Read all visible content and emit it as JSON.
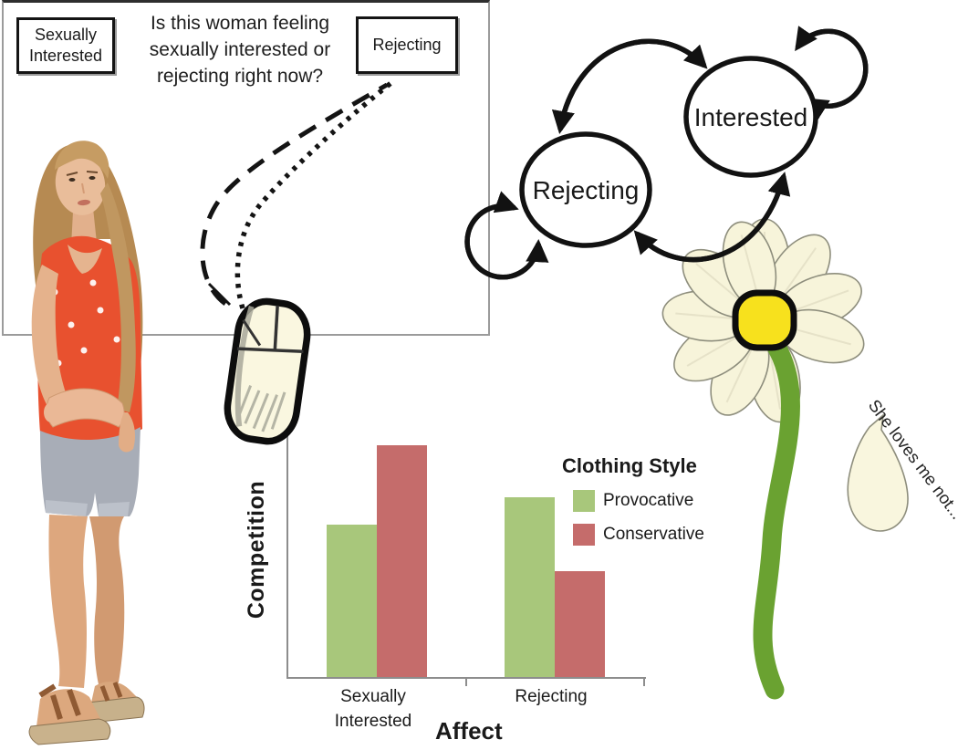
{
  "experiment_screen": {
    "question": "Is this woman feeling sexually interested or rejecting right now?",
    "left_option": "Sexually Interested",
    "right_option": "Rejecting"
  },
  "state_diagram": {
    "left_state": "Rejecting",
    "right_state": "Interested"
  },
  "flower": {
    "caption": "She loves me not...",
    "center_color": "#f7e11d",
    "petal_color": "#f7f4da",
    "stem_color": "#6aa231"
  },
  "chart_data": {
    "type": "bar",
    "title": "",
    "xlabel": "Affect",
    "ylabel": "Competition",
    "legend_title": "Clothing Style",
    "legend_position": "right",
    "categories": [
      "Sexually Interested",
      "Rejecting"
    ],
    "series": [
      {
        "name": "Provocative",
        "color": "#a8c77b",
        "values": [
          0.62,
          0.73
        ]
      },
      {
        "name": "Conservative",
        "color": "#c56c6b",
        "values": [
          0.94,
          0.43
        ]
      }
    ],
    "ylim": [
      0,
      1
    ],
    "grid": false
  }
}
